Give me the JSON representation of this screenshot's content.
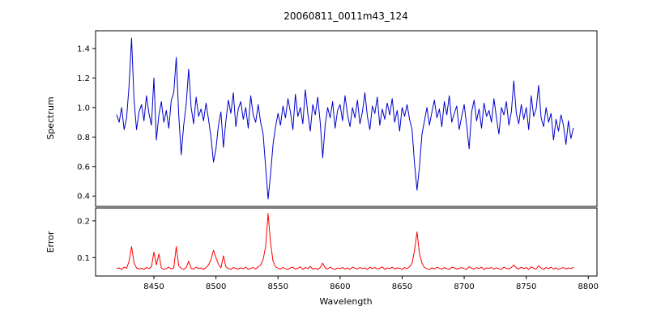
{
  "chart_data": {
    "type": "line",
    "title": "20060811_0011m43_124",
    "xlabel": "Wavelength",
    "xlim": [
      8403,
      8807
    ],
    "xticks": [
      8450,
      8500,
      8550,
      8600,
      8650,
      8700,
      8750,
      8800
    ],
    "grid": false,
    "legend": "none",
    "x_start": 8420,
    "x_step": 2,
    "panels": [
      {
        "name": "spectrum",
        "ylabel": "Spectrum",
        "color": "#0000cc",
        "ylim": [
          0.33,
          1.52
        ],
        "yticks": [
          "0.4",
          "0.6",
          "0.8",
          "1.0",
          "1.2",
          "1.4"
        ],
        "values": [
          0.95,
          0.9,
          1.0,
          0.85,
          0.93,
          1.15,
          1.47,
          1.05,
          0.85,
          0.97,
          1.02,
          0.91,
          1.08,
          0.96,
          0.88,
          1.2,
          0.78,
          0.95,
          1.04,
          0.9,
          0.98,
          0.86,
          1.05,
          1.1,
          1.34,
          0.95,
          0.68,
          0.88,
          1.02,
          1.26,
          1.0,
          0.89,
          1.07,
          0.94,
          0.99,
          0.91,
          1.03,
          0.92,
          0.8,
          0.63,
          0.72,
          0.88,
          0.97,
          0.73,
          0.91,
          1.05,
          0.96,
          1.1,
          0.87,
          0.99,
          1.04,
          0.92,
          1.0,
          0.86,
          1.08,
          0.95,
          0.9,
          1.02,
          0.9,
          0.82,
          0.6,
          0.38,
          0.55,
          0.75,
          0.87,
          0.96,
          0.88,
          1.01,
          0.93,
          1.06,
          0.97,
          0.85,
          1.09,
          0.94,
          1.0,
          0.89,
          1.12,
          0.96,
          0.84,
          1.02,
          0.95,
          1.07,
          0.9,
          0.66,
          0.88,
          1.0,
          0.93,
          1.04,
          0.86,
          0.98,
          1.02,
          0.91,
          1.08,
          0.95,
          0.87,
          1.0,
          0.93,
          1.05,
          0.89,
          0.97,
          1.1,
          0.94,
          0.85,
          1.01,
          0.96,
          1.07,
          0.88,
          0.99,
          0.92,
          1.03,
          0.95,
          1.06,
          0.9,
          0.98,
          0.84,
          1.0,
          0.94,
          1.02,
          0.92,
          0.85,
          0.62,
          0.44,
          0.6,
          0.82,
          0.91,
          1.0,
          0.88,
          0.97,
          1.05,
          0.93,
          0.99,
          0.87,
          1.04,
          0.95,
          1.08,
          0.9,
          0.96,
          1.01,
          0.85,
          0.94,
          1.02,
          0.88,
          0.72,
          0.97,
          1.05,
          0.91,
          0.99,
          0.86,
          1.03,
          0.94,
          0.98,
          0.9,
          1.06,
          0.93,
          0.82,
          1.0,
          0.95,
          1.04,
          0.88,
          0.97,
          1.18,
          0.96,
          0.89,
          1.02,
          0.92,
          1.0,
          0.85,
          1.08,
          0.94,
          0.99,
          1.15,
          0.93,
          0.87,
          1.0,
          0.9,
          0.96,
          0.78,
          0.92,
          0.84,
          0.95,
          0.88,
          0.75,
          0.91,
          0.79,
          0.86
        ]
      },
      {
        "name": "error",
        "ylabel": "Error",
        "color": "#ff0000",
        "ylim": [
          0.05,
          0.235
        ],
        "yticks": [
          "0.1",
          "0.2"
        ],
        "values": [
          0.07,
          0.072,
          0.068,
          0.074,
          0.071,
          0.09,
          0.13,
          0.085,
          0.072,
          0.069,
          0.071,
          0.068,
          0.073,
          0.07,
          0.075,
          0.115,
          0.08,
          0.11,
          0.072,
          0.068,
          0.07,
          0.074,
          0.069,
          0.072,
          0.13,
          0.078,
          0.071,
          0.068,
          0.073,
          0.09,
          0.071,
          0.069,
          0.074,
          0.07,
          0.072,
          0.068,
          0.073,
          0.08,
          0.095,
          0.12,
          0.1,
          0.082,
          0.072,
          0.105,
          0.075,
          0.07,
          0.068,
          0.073,
          0.071,
          0.069,
          0.072,
          0.07,
          0.074,
          0.068,
          0.071,
          0.073,
          0.069,
          0.075,
          0.08,
          0.095,
          0.13,
          0.22,
          0.14,
          0.09,
          0.075,
          0.071,
          0.069,
          0.073,
          0.07,
          0.068,
          0.072,
          0.074,
          0.069,
          0.071,
          0.075,
          0.068,
          0.073,
          0.07,
          0.076,
          0.069,
          0.071,
          0.068,
          0.073,
          0.085,
          0.072,
          0.069,
          0.074,
          0.07,
          0.068,
          0.072,
          0.07,
          0.073,
          0.069,
          0.072,
          0.068,
          0.074,
          0.071,
          0.069,
          0.073,
          0.07,
          0.072,
          0.068,
          0.074,
          0.07,
          0.073,
          0.069,
          0.071,
          0.075,
          0.068,
          0.072,
          0.07,
          0.074,
          0.069,
          0.072,
          0.071,
          0.068,
          0.073,
          0.07,
          0.075,
          0.085,
          0.12,
          0.17,
          0.11,
          0.085,
          0.073,
          0.07,
          0.068,
          0.072,
          0.069,
          0.074,
          0.071,
          0.069,
          0.073,
          0.07,
          0.068,
          0.074,
          0.072,
          0.069,
          0.071,
          0.073,
          0.07,
          0.068,
          0.075,
          0.071,
          0.069,
          0.073,
          0.07,
          0.074,
          0.068,
          0.072,
          0.071,
          0.073,
          0.069,
          0.072,
          0.07,
          0.068,
          0.074,
          0.071,
          0.069,
          0.073,
          0.08,
          0.072,
          0.069,
          0.074,
          0.07,
          0.073,
          0.068,
          0.075,
          0.071,
          0.069,
          0.078,
          0.071,
          0.068,
          0.073,
          0.07,
          0.074,
          0.069,
          0.072,
          0.068,
          0.071,
          0.073,
          0.069,
          0.072,
          0.07,
          0.074
        ]
      }
    ]
  }
}
